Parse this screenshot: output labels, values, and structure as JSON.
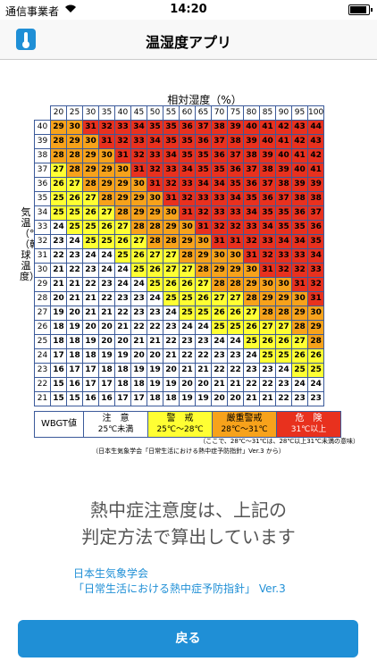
{
  "status_bar": {
    "carrier": "通信事業者",
    "time": "14:20",
    "battery_level": 1.0
  },
  "nav": {
    "title": "温湿度アプリ",
    "icon": "thermometer-icon"
  },
  "chart_data": {
    "type": "table",
    "title": "相対湿度（%）",
    "ylabel": "気温（℃）（乾球温度）",
    "humidity": [
      20,
      25,
      30,
      35,
      40,
      45,
      50,
      55,
      60,
      65,
      70,
      75,
      80,
      85,
      90,
      95,
      100
    ],
    "temperatures": [
      40,
      39,
      38,
      37,
      36,
      35,
      34,
      33,
      32,
      31,
      30,
      29,
      28,
      27,
      26,
      25,
      24,
      23,
      22,
      21
    ],
    "rows": [
      [
        29,
        30,
        31,
        32,
        33,
        34,
        35,
        35,
        36,
        37,
        38,
        39,
        40,
        41,
        42,
        43,
        44
      ],
      [
        28,
        29,
        30,
        31,
        32,
        33,
        34,
        35,
        35,
        36,
        37,
        38,
        39,
        40,
        41,
        42,
        43
      ],
      [
        28,
        28,
        29,
        30,
        31,
        32,
        33,
        34,
        35,
        35,
        36,
        37,
        38,
        39,
        40,
        41,
        42
      ],
      [
        27,
        28,
        29,
        29,
        30,
        31,
        32,
        33,
        34,
        35,
        35,
        36,
        37,
        38,
        39,
        40,
        41
      ],
      [
        26,
        27,
        28,
        29,
        29,
        30,
        31,
        32,
        33,
        34,
        34,
        35,
        36,
        37,
        38,
        39,
        39
      ],
      [
        25,
        26,
        27,
        28,
        29,
        29,
        30,
        31,
        32,
        33,
        33,
        34,
        35,
        36,
        37,
        38,
        38
      ],
      [
        25,
        25,
        26,
        27,
        28,
        29,
        29,
        30,
        31,
        32,
        33,
        33,
        34,
        35,
        35,
        36,
        37
      ],
      [
        24,
        25,
        25,
        26,
        27,
        28,
        28,
        29,
        30,
        31,
        32,
        32,
        33,
        34,
        35,
        35,
        36
      ],
      [
        23,
        24,
        25,
        25,
        26,
        27,
        28,
        28,
        29,
        30,
        31,
        31,
        32,
        33,
        34,
        34,
        35
      ],
      [
        22,
        23,
        24,
        24,
        25,
        26,
        27,
        27,
        28,
        29,
        30,
        30,
        31,
        32,
        33,
        33,
        34
      ],
      [
        21,
        22,
        23,
        24,
        24,
        25,
        26,
        27,
        27,
        28,
        29,
        29,
        30,
        31,
        32,
        32,
        33
      ],
      [
        21,
        21,
        22,
        23,
        24,
        24,
        25,
        26,
        26,
        27,
        28,
        28,
        29,
        30,
        30,
        31,
        32
      ],
      [
        20,
        21,
        21,
        22,
        23,
        23,
        24,
        25,
        25,
        26,
        27,
        27,
        28,
        29,
        29,
        30,
        31
      ],
      [
        19,
        20,
        21,
        21,
        22,
        23,
        23,
        24,
        25,
        25,
        26,
        26,
        27,
        28,
        28,
        29,
        30
      ],
      [
        18,
        19,
        20,
        20,
        21,
        22,
        22,
        23,
        24,
        24,
        25,
        25,
        26,
        27,
        27,
        28,
        29
      ],
      [
        18,
        18,
        19,
        20,
        20,
        21,
        21,
        22,
        23,
        23,
        24,
        24,
        25,
        26,
        26,
        27,
        28
      ],
      [
        17,
        18,
        18,
        19,
        19,
        20,
        20,
        21,
        22,
        22,
        23,
        23,
        24,
        25,
        25,
        26,
        26
      ],
      [
        16,
        17,
        17,
        18,
        18,
        19,
        19,
        20,
        21,
        21,
        22,
        22,
        23,
        23,
        24,
        25,
        25
      ],
      [
        15,
        16,
        17,
        17,
        18,
        18,
        19,
        19,
        20,
        20,
        21,
        21,
        22,
        22,
        23,
        24,
        24
      ],
      [
        15,
        15,
        16,
        16,
        17,
        17,
        18,
        18,
        19,
        19,
        20,
        20,
        21,
        21,
        22,
        23,
        23
      ]
    ],
    "levels": [
      {
        "min": 0,
        "max": 24,
        "color": "#ffffff"
      },
      {
        "min": 25,
        "max": 27,
        "color": "#ffff33"
      },
      {
        "min": 28,
        "max": 30,
        "color": "#f7a21b"
      },
      {
        "min": 31,
        "max": 99,
        "color": "#e8311e"
      }
    ]
  },
  "legend": {
    "header": "WBGT値",
    "items": [
      {
        "label": "注　意",
        "range": "25℃未満"
      },
      {
        "label": "警　戒",
        "range": "25℃〜28℃"
      },
      {
        "label": "厳重警戒",
        "range": "28℃〜31℃"
      },
      {
        "label": "危　険",
        "range": "31℃以上"
      }
    ]
  },
  "notes": {
    "range_note": "（ここで、28℃〜31℃は、28℃以上31℃未満の意味）",
    "source_note": "（日本生気象学会「日常生活における熱中症予防指針」Ver.3 から）"
  },
  "message": {
    "line1": "熱中症注意度は、上記の",
    "line2": "判定方法で算出しています"
  },
  "reference": {
    "line1": "日本生気象学会",
    "line2": "「日常生活における熱中症予防指針」 Ver.3"
  },
  "back_button": "戻る",
  "colors": {
    "accent": "#1f8fd6",
    "grid_border": "#3b5a9a"
  }
}
